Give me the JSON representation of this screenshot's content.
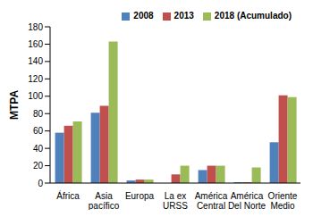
{
  "chart_data": {
    "type": "bar",
    "categories": [
      "África",
      "Asia pacífico",
      "Europa",
      "La ex URSS",
      "América Central",
      "América Del Norte",
      "Oriente Medio"
    ],
    "series": [
      {
        "name": "2008",
        "color": "#4f81bd",
        "values": [
          58,
          81,
          3,
          0,
          15,
          1,
          47
        ]
      },
      {
        "name": "2013",
        "color": "#c0504d",
        "values": [
          66,
          89,
          4,
          10,
          20,
          1,
          101
        ]
      },
      {
        "name": "2018 (Acumulado)",
        "color": "#9bbb59",
        "values": [
          71,
          163,
          4,
          20,
          20,
          18,
          99
        ]
      }
    ],
    "ylabel": "MTPA",
    "ylim": [
      0,
      180
    ],
    "yticks": [
      0,
      20,
      40,
      60,
      80,
      100,
      120,
      140,
      160,
      180
    ],
    "legend": "upper right",
    "grid": false
  }
}
